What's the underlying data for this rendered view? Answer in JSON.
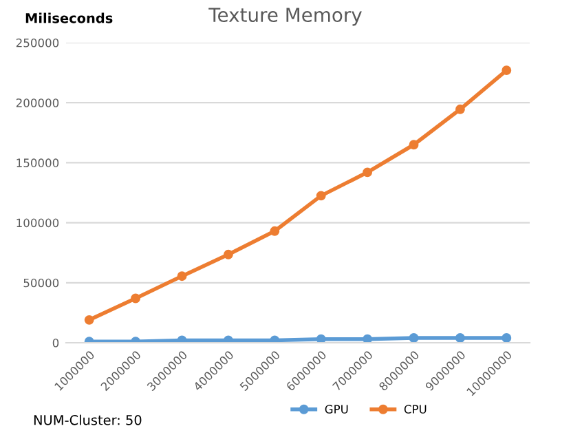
{
  "chart_data": {
    "type": "line",
    "title": "Texture Memory",
    "ylabel": "Miliseconds",
    "categories": [
      "1000000",
      "2000000",
      "3000000",
      "4000000",
      "5000000",
      "6000000",
      "7000000",
      "8000000",
      "9000000",
      "10000000"
    ],
    "series": [
      {
        "name": "GPU",
        "color": "#5b9bd5",
        "values": [
          1000,
          1000,
          2000,
          2000,
          2000,
          3000,
          3000,
          4000,
          4000,
          4000
        ]
      },
      {
        "name": "CPU",
        "color": "#ed7d31",
        "values": [
          19000,
          37000,
          55500,
          73500,
          93000,
          122500,
          142000,
          165000,
          194500,
          227000
        ]
      }
    ],
    "ylim": [
      0,
      250000
    ],
    "yticks": [
      0,
      50000,
      100000,
      150000,
      200000,
      250000
    ],
    "grid": "y",
    "legend": "bottom",
    "marker": "circle",
    "line_style": "solid",
    "annotations": [
      "NUM-Cluster: 50"
    ]
  }
}
